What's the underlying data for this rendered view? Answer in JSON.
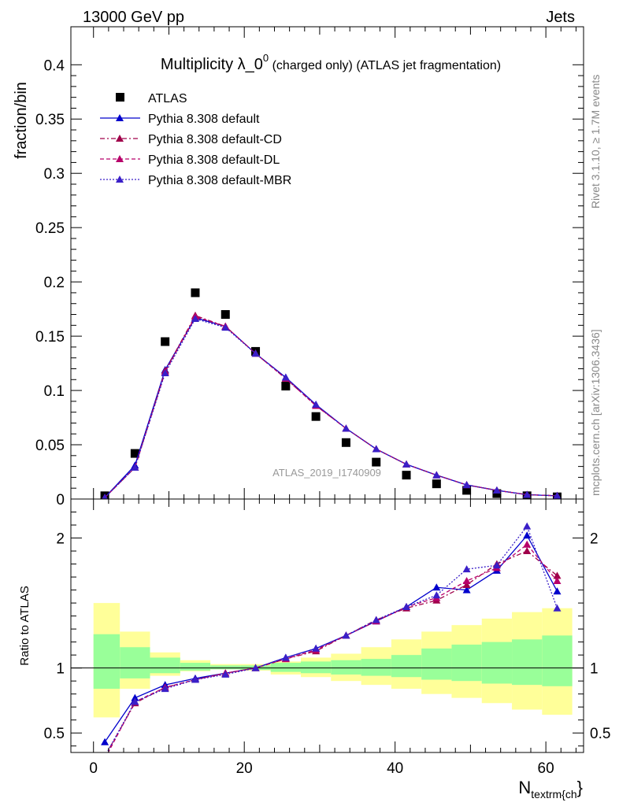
{
  "header": {
    "left": "13000 GeV pp",
    "right": "Jets"
  },
  "side_labels": {
    "rivet": "Rivet 3.1.10, ≥ 1.7M events",
    "mcplots": "mcplots.cern.ch [arXiv:1306.3436]"
  },
  "chart_data": [
    {
      "type": "scatter",
      "panel": "main",
      "title_main": "Multiplicity λ_0",
      "title_sup": "0",
      "title_rest": " (charged only) (ATLAS jet fragmentation)",
      "watermark": "ATLAS_2019_I1740909",
      "xlabel_main": "N",
      "xlabel_sub": "textrm{ch",
      "xlabel_end": "}",
      "ylabel": "fraction/bin",
      "xlim": [
        -3,
        65
      ],
      "ylim": [
        0,
        0.435
      ],
      "x_ticks": [
        0,
        20,
        40,
        60
      ],
      "x_tick_labels": [
        "0",
        "20",
        "40",
        "60"
      ],
      "y_ticks": [
        0,
        0.05,
        0.1,
        0.15,
        0.2,
        0.25,
        0.3,
        0.35,
        0.4
      ],
      "y_tick_labels": [
        "0",
        "0.05",
        "0.1",
        "0.15",
        "0.2",
        "0.25",
        "0.3",
        "0.35",
        "0.4"
      ],
      "legend_position": "top-left",
      "x": [
        1.5,
        5.5,
        9.5,
        13.5,
        17.5,
        21.5,
        25.5,
        29.5,
        33.5,
        37.5,
        41.5,
        45.5,
        49.5,
        53.5,
        57.5,
        61.5
      ],
      "series": [
        {
          "name": "ATLAS",
          "color": "#000000",
          "marker": "square",
          "line": "none",
          "values": [
            0.003,
            0.042,
            0.145,
            0.19,
            0.17,
            0.136,
            0.104,
            0.076,
            0.052,
            0.034,
            0.022,
            0.014,
            0.008,
            0.005,
            0.003,
            0.002
          ]
        },
        {
          "name": "Pythia 8.308 default",
          "color": "#0000cc",
          "marker": "triangle",
          "line": "solid",
          "values": [
            0.0014,
            0.031,
            0.119,
            0.167,
            0.159,
            0.134,
            0.112,
            0.087,
            0.065,
            0.046,
            0.032,
            0.022,
            0.013,
            0.008,
            0.004,
            0.003
          ]
        },
        {
          "name": "Pythia 8.308 default-CD",
          "color": "#a0004a",
          "marker": "triangle",
          "line": "dashdot",
          "values": [
            0.0013,
            0.029,
            0.118,
            0.169,
            0.159,
            0.134,
            0.111,
            0.086,
            0.065,
            0.046,
            0.032,
            0.022,
            0.013,
            0.008,
            0.004,
            0.003
          ]
        },
        {
          "name": "Pythia 8.308 default-DL",
          "color": "#b8006a",
          "marker": "triangle",
          "line": "dashed",
          "values": [
            0.0013,
            0.029,
            0.117,
            0.168,
            0.159,
            0.134,
            0.111,
            0.086,
            0.065,
            0.046,
            0.032,
            0.022,
            0.013,
            0.008,
            0.004,
            0.003
          ]
        },
        {
          "name": "Pythia 8.308 default-MBR",
          "color": "#3a1fc8",
          "marker": "triangle",
          "line": "dotted",
          "values": [
            0.0013,
            0.029,
            0.116,
            0.166,
            0.158,
            0.134,
            0.112,
            0.087,
            0.065,
            0.046,
            0.032,
            0.022,
            0.013,
            0.008,
            0.004,
            0.003
          ]
        }
      ]
    },
    {
      "type": "line",
      "panel": "ratio",
      "ylabel": "Ratio to ATLAS",
      "xlim": [
        -3,
        65
      ],
      "ylim": [
        0.35,
        2.3
      ],
      "y_ticks": [
        0.5,
        1,
        2
      ],
      "y_tick_labels": [
        "0.5",
        "1",
        "2"
      ],
      "band_edges": [
        0,
        3.5,
        7.5,
        11.5,
        15.5,
        19.5,
        23.5,
        27.5,
        31.5,
        35.5,
        39.5,
        43.5,
        47.5,
        51.5,
        55.5,
        59.5,
        63.5
      ],
      "band_stat_lo": [
        0.84,
        0.92,
        0.96,
        0.98,
        0.99,
        0.985,
        0.97,
        0.96,
        0.95,
        0.94,
        0.93,
        0.91,
        0.9,
        0.88,
        0.87,
        0.86
      ],
      "band_stat_hi": [
        1.26,
        1.16,
        1.08,
        1.04,
        1.02,
        1.02,
        1.04,
        1.05,
        1.06,
        1.07,
        1.1,
        1.15,
        1.18,
        1.2,
        1.22,
        1.25
      ],
      "band_tot_lo": [
        0.62,
        0.84,
        0.94,
        0.975,
        0.99,
        0.98,
        0.95,
        0.93,
        0.9,
        0.87,
        0.84,
        0.8,
        0.77,
        0.73,
        0.68,
        0.64
      ],
      "band_tot_hi": [
        1.5,
        1.28,
        1.12,
        1.06,
        1.03,
        1.03,
        1.05,
        1.08,
        1.11,
        1.16,
        1.22,
        1.28,
        1.33,
        1.38,
        1.43,
        1.46
      ],
      "series": [
        {
          "name": "Pythia 8.308 default",
          "color": "#0000cc",
          "values": [
            0.43,
            0.77,
            0.87,
            0.92,
            0.96,
            1.0,
            1.08,
            1.15,
            1.25,
            1.36,
            1.47,
            1.62,
            1.6,
            1.75,
            2.02,
            1.59
          ]
        },
        {
          "name": "Pythia 8.308 default-CD",
          "color": "#a0004a",
          "values": [
            0.32,
            0.73,
            0.85,
            0.91,
            0.96,
            1.0,
            1.07,
            1.13,
            1.25,
            1.37,
            1.46,
            1.52,
            1.64,
            1.8,
            1.9,
            1.71
          ]
        },
        {
          "name": "Pythia 8.308 default-DL",
          "color": "#b8006a",
          "values": [
            0.3,
            0.74,
            0.85,
            0.91,
            0.96,
            1.0,
            1.07,
            1.14,
            1.25,
            1.36,
            1.47,
            1.54,
            1.67,
            1.77,
            1.95,
            1.67
          ]
        },
        {
          "name": "Pythia 8.308 default-MBR",
          "color": "#3a1fc8",
          "values": [
            0.32,
            0.74,
            0.84,
            0.91,
            0.95,
            1.0,
            1.08,
            1.15,
            1.25,
            1.37,
            1.47,
            1.56,
            1.76,
            1.79,
            2.09,
            1.46
          ]
        }
      ]
    }
  ]
}
